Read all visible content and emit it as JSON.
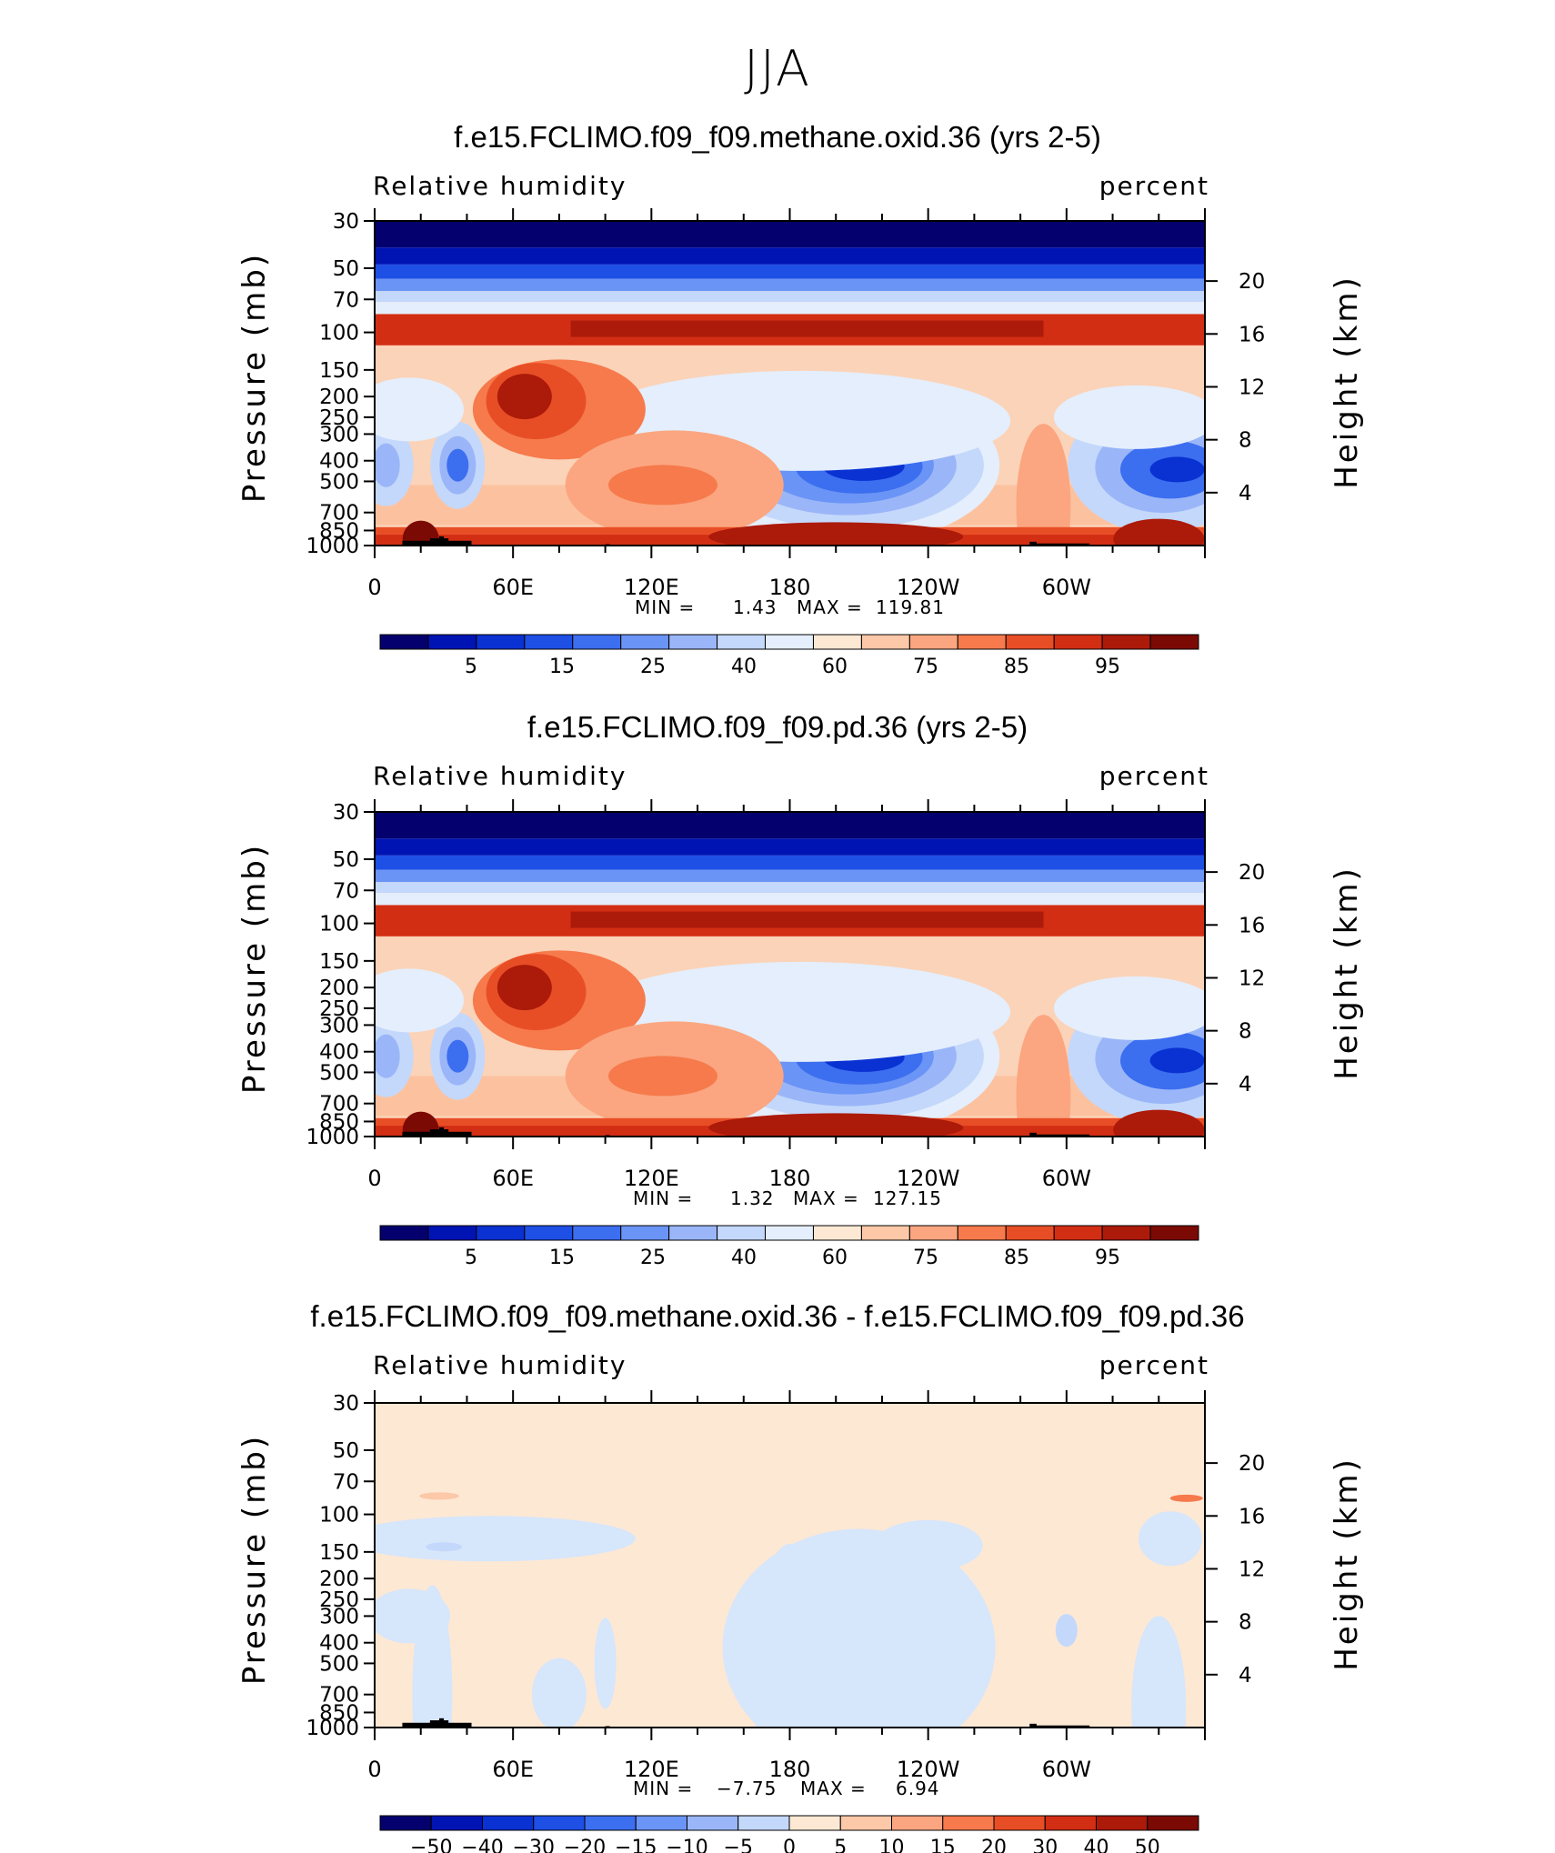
{
  "title": "JJA",
  "panels": [
    {
      "title": "f.e15.FCLIMO.f09_f09.methane.oxid.36 (yrs 2-5)",
      "variable": "Relative humidity",
      "units": "percent",
      "min_label": "MIN =",
      "min_value": "1.43",
      "max_label": "MAX =",
      "max_value": "119.81",
      "colorbar_labels": [
        "5",
        "15",
        "25",
        "40",
        "60",
        "75",
        "85",
        "95"
      ]
    },
    {
      "title": "f.e15.FCLIMO.f09_f09.pd.36 (yrs 2-5)",
      "variable": "Relative humidity",
      "units": "percent",
      "min_label": "MIN =",
      "min_value": "1.32",
      "max_label": "MAX =",
      "max_value": "127.15",
      "colorbar_labels": [
        "5",
        "15",
        "25",
        "40",
        "60",
        "75",
        "85",
        "95"
      ]
    },
    {
      "title": "f.e15.FCLIMO.f09_f09.methane.oxid.36 - f.e15.FCLIMO.f09_f09.pd.36",
      "variable": "Relative humidity",
      "units": "percent",
      "min_label": "MIN =",
      "min_value": "−7.75",
      "max_label": "MAX =",
      "max_value": "6.94",
      "colorbar_labels": [
        "−50",
        "−40",
        "−30",
        "−20",
        "−15",
        "−10",
        "−5",
        "0",
        "5",
        "10",
        "15",
        "20",
        "30",
        "40",
        "50"
      ]
    }
  ],
  "axes": {
    "ylabel_left": "Pressure (mb)",
    "ylabel_right": "Height (km)",
    "x_ticks": [
      "0",
      "60E",
      "120E",
      "180",
      "120W",
      "60W"
    ],
    "y_ticks_pressure": [
      "30",
      "50",
      "70",
      "100",
      "150",
      "200",
      "250",
      "300",
      "400",
      "500",
      "700",
      "850",
      "1000"
    ],
    "y_ticks_height": [
      "20",
      "16",
      "12",
      "8",
      "4"
    ]
  },
  "colors": {
    "full_palette": [
      "#04016e",
      "#0014b4",
      "#0a32d2",
      "#1e50e6",
      "#3c6ef0",
      "#6a94f5",
      "#9ab6f8",
      "#c4d8fb",
      "#e4eefc",
      "#fde8d4",
      "#fcc8a8",
      "#fba680",
      "#f67a4c",
      "#e84e26",
      "#d22e14",
      "#ac1a0a",
      "#7c0a04"
    ],
    "rh_pos": [
      "#d22e14",
      "#e84e26",
      "#f67a4c",
      "#fba680",
      "#fcc8a8",
      "#fde8d4",
      "#e4eefc",
      "#c4d8fb",
      "#9ab6f8",
      "#3c6ef0",
      "#0a32d2"
    ]
  },
  "chart_data": [
    {
      "type": "heatmap",
      "title": "f.e15.FCLIMO.f09_f09.methane.oxid.36 (yrs 2-5)",
      "variable": "Relative humidity",
      "units": "percent",
      "x": "longitude",
      "x_range": [
        0,
        360
      ],
      "x_ticks": [
        0,
        60,
        120,
        180,
        240,
        300
      ],
      "y": "pressure (mb)",
      "y_range": [
        30,
        1000
      ],
      "contour_levels": [
        5,
        10,
        15,
        20,
        25,
        30,
        40,
        50,
        60,
        65,
        70,
        75,
        80,
        85,
        90,
        95
      ],
      "min": 1.43,
      "max": 119.81
    },
    {
      "type": "heatmap",
      "title": "f.e15.FCLIMO.f09_f09.pd.36 (yrs 2-5)",
      "variable": "Relative humidity",
      "units": "percent",
      "x": "longitude",
      "x_range": [
        0,
        360
      ],
      "x_ticks": [
        0,
        60,
        120,
        180,
        240,
        300
      ],
      "y": "pressure (mb)",
      "y_range": [
        30,
        1000
      ],
      "contour_levels": [
        5,
        10,
        15,
        20,
        25,
        30,
        40,
        50,
        60,
        65,
        70,
        75,
        80,
        85,
        90,
        95
      ],
      "min": 1.32,
      "max": 127.15
    },
    {
      "type": "heatmap",
      "title": "f.e15.FCLIMO.f09_f09.methane.oxid.36 - f.e15.FCLIMO.f09_f09.pd.36",
      "variable": "Relative humidity",
      "units": "percent",
      "x": "longitude",
      "x_range": [
        0,
        360
      ],
      "y": "pressure (mb)",
      "y_range": [
        30,
        1000
      ],
      "contour_levels": [
        -50,
        -40,
        -30,
        -20,
        -15,
        -10,
        -5,
        0,
        5,
        10,
        15,
        20,
        30,
        40,
        50
      ],
      "min": -7.75,
      "max": 6.94
    }
  ]
}
